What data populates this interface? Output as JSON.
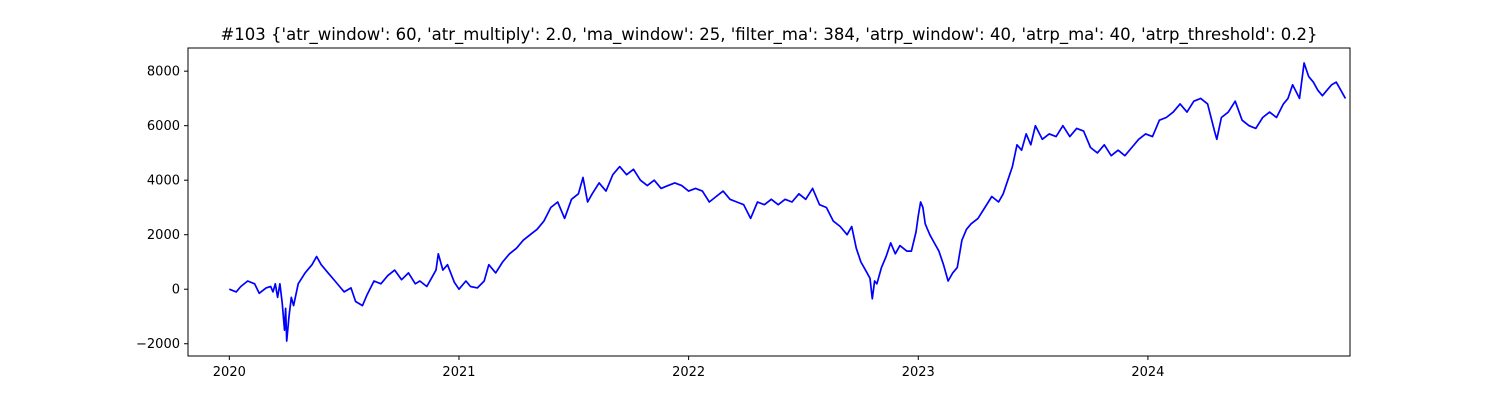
{
  "chart_data": {
    "type": "line",
    "title": "#103 {'atr_window': 60, 'atr_multiply': 2.0, 'ma_window': 25, 'filter_ma': 384, 'atrp_window': 40, 'atrp_ma': 40, 'atrp_threshold': 0.2}",
    "xlabel": "",
    "ylabel": "",
    "xlim": [
      2019.82,
      2024.88
    ],
    "ylim": [
      -2450,
      8850
    ],
    "x_ticks": [
      {
        "value": 2020,
        "label": "2020"
      },
      {
        "value": 2021,
        "label": "2021"
      },
      {
        "value": 2022,
        "label": "2022"
      },
      {
        "value": 2023,
        "label": "2023"
      },
      {
        "value": 2024,
        "label": "2024"
      }
    ],
    "y_ticks": [
      {
        "value": -2000,
        "label": "−2000"
      },
      {
        "value": 0,
        "label": "0"
      },
      {
        "value": 2000,
        "label": "2000"
      },
      {
        "value": 4000,
        "label": "4000"
      },
      {
        "value": 6000,
        "label": "6000"
      },
      {
        "value": 8000,
        "label": "8000"
      }
    ],
    "grid": false,
    "legend": "none",
    "series": [
      {
        "color": "#0000ff",
        "points": [
          [
            2020.0,
            0
          ],
          [
            2020.03,
            -100
          ],
          [
            2020.05,
            100
          ],
          [
            2020.08,
            300
          ],
          [
            2020.11,
            200
          ],
          [
            2020.13,
            -150
          ],
          [
            2020.16,
            50
          ],
          [
            2020.18,
            100
          ],
          [
            2020.19,
            -100
          ],
          [
            2020.2,
            200
          ],
          [
            2020.21,
            -300
          ],
          [
            2020.22,
            200
          ],
          [
            2020.23,
            -500
          ],
          [
            2020.24,
            -1500
          ],
          [
            2020.245,
            -700
          ],
          [
            2020.25,
            -1900
          ],
          [
            2020.26,
            -1000
          ],
          [
            2020.27,
            -300
          ],
          [
            2020.28,
            -600
          ],
          [
            2020.3,
            200
          ],
          [
            2020.33,
            600
          ],
          [
            2020.36,
            900
          ],
          [
            2020.38,
            1200
          ],
          [
            2020.4,
            900
          ],
          [
            2020.43,
            600
          ],
          [
            2020.46,
            300
          ],
          [
            2020.48,
            100
          ],
          [
            2020.5,
            -100
          ],
          [
            2020.53,
            50
          ],
          [
            2020.55,
            -450
          ],
          [
            2020.58,
            -600
          ],
          [
            2020.6,
            -200
          ],
          [
            2020.63,
            300
          ],
          [
            2020.66,
            200
          ],
          [
            2020.69,
            500
          ],
          [
            2020.72,
            700
          ],
          [
            2020.75,
            350
          ],
          [
            2020.78,
            600
          ],
          [
            2020.81,
            200
          ],
          [
            2020.83,
            300
          ],
          [
            2020.86,
            100
          ],
          [
            2020.88,
            400
          ],
          [
            2020.9,
            700
          ],
          [
            2020.91,
            1300
          ],
          [
            2020.93,
            700
          ],
          [
            2020.95,
            900
          ],
          [
            2020.98,
            250
          ],
          [
            2021.0,
            0
          ],
          [
            2021.03,
            300
          ],
          [
            2021.05,
            100
          ],
          [
            2021.08,
            50
          ],
          [
            2021.11,
            300
          ],
          [
            2021.13,
            900
          ],
          [
            2021.16,
            600
          ],
          [
            2021.19,
            1000
          ],
          [
            2021.22,
            1300
          ],
          [
            2021.25,
            1500
          ],
          [
            2021.28,
            1800
          ],
          [
            2021.31,
            2000
          ],
          [
            2021.34,
            2200
          ],
          [
            2021.37,
            2500
          ],
          [
            2021.4,
            3000
          ],
          [
            2021.43,
            3200
          ],
          [
            2021.46,
            2600
          ],
          [
            2021.49,
            3300
          ],
          [
            2021.52,
            3500
          ],
          [
            2021.54,
            4100
          ],
          [
            2021.56,
            3200
          ],
          [
            2021.58,
            3500
          ],
          [
            2021.61,
            3900
          ],
          [
            2021.64,
            3600
          ],
          [
            2021.67,
            4200
          ],
          [
            2021.7,
            4500
          ],
          [
            2021.73,
            4200
          ],
          [
            2021.76,
            4400
          ],
          [
            2021.79,
            4000
          ],
          [
            2021.82,
            3800
          ],
          [
            2021.85,
            4000
          ],
          [
            2021.88,
            3700
          ],
          [
            2021.91,
            3800
          ],
          [
            2021.94,
            3900
          ],
          [
            2021.97,
            3800
          ],
          [
            2022.0,
            3600
          ],
          [
            2022.03,
            3700
          ],
          [
            2022.06,
            3600
          ],
          [
            2022.09,
            3200
          ],
          [
            2022.12,
            3400
          ],
          [
            2022.15,
            3600
          ],
          [
            2022.18,
            3300
          ],
          [
            2022.21,
            3200
          ],
          [
            2022.24,
            3100
          ],
          [
            2022.27,
            2600
          ],
          [
            2022.3,
            3200
          ],
          [
            2022.33,
            3100
          ],
          [
            2022.36,
            3300
          ],
          [
            2022.39,
            3100
          ],
          [
            2022.42,
            3300
          ],
          [
            2022.45,
            3200
          ],
          [
            2022.48,
            3500
          ],
          [
            2022.51,
            3300
          ],
          [
            2022.54,
            3700
          ],
          [
            2022.57,
            3100
          ],
          [
            2022.6,
            3000
          ],
          [
            2022.63,
            2500
          ],
          [
            2022.66,
            2300
          ],
          [
            2022.69,
            2000
          ],
          [
            2022.71,
            2300
          ],
          [
            2022.73,
            1500
          ],
          [
            2022.75,
            1000
          ],
          [
            2022.77,
            700
          ],
          [
            2022.79,
            400
          ],
          [
            2022.8,
            -350
          ],
          [
            2022.81,
            300
          ],
          [
            2022.82,
            200
          ],
          [
            2022.84,
            800
          ],
          [
            2022.86,
            1200
          ],
          [
            2022.88,
            1700
          ],
          [
            2022.9,
            1300
          ],
          [
            2022.92,
            1600
          ],
          [
            2022.95,
            1400
          ],
          [
            2022.97,
            1400
          ],
          [
            2022.99,
            2100
          ],
          [
            2023.0,
            2700
          ],
          [
            2023.01,
            3200
          ],
          [
            2023.02,
            3000
          ],
          [
            2023.03,
            2400
          ],
          [
            2023.05,
            2000
          ],
          [
            2023.07,
            1700
          ],
          [
            2023.09,
            1400
          ],
          [
            2023.11,
            900
          ],
          [
            2023.13,
            300
          ],
          [
            2023.15,
            600
          ],
          [
            2023.17,
            800
          ],
          [
            2023.19,
            1800
          ],
          [
            2023.21,
            2200
          ],
          [
            2023.23,
            2400
          ],
          [
            2023.26,
            2600
          ],
          [
            2023.29,
            3000
          ],
          [
            2023.32,
            3400
          ],
          [
            2023.35,
            3200
          ],
          [
            2023.37,
            3500
          ],
          [
            2023.39,
            4000
          ],
          [
            2023.41,
            4500
          ],
          [
            2023.43,
            5300
          ],
          [
            2023.45,
            5100
          ],
          [
            2023.47,
            5700
          ],
          [
            2023.49,
            5300
          ],
          [
            2023.51,
            6000
          ],
          [
            2023.54,
            5500
          ],
          [
            2023.57,
            5700
          ],
          [
            2023.6,
            5600
          ],
          [
            2023.63,
            6000
          ],
          [
            2023.66,
            5600
          ],
          [
            2023.69,
            5900
          ],
          [
            2023.72,
            5800
          ],
          [
            2023.75,
            5200
          ],
          [
            2023.78,
            5000
          ],
          [
            2023.81,
            5300
          ],
          [
            2023.84,
            4900
          ],
          [
            2023.87,
            5100
          ],
          [
            2023.9,
            4900
          ],
          [
            2023.93,
            5200
          ],
          [
            2023.96,
            5500
          ],
          [
            2023.99,
            5700
          ],
          [
            2024.02,
            5600
          ],
          [
            2024.05,
            6200
          ],
          [
            2024.08,
            6300
          ],
          [
            2024.11,
            6500
          ],
          [
            2024.14,
            6800
          ],
          [
            2024.17,
            6500
          ],
          [
            2024.2,
            6900
          ],
          [
            2024.23,
            7000
          ],
          [
            2024.26,
            6800
          ],
          [
            2024.29,
            5800
          ],
          [
            2024.3,
            5500
          ],
          [
            2024.32,
            6300
          ],
          [
            2024.35,
            6500
          ],
          [
            2024.38,
            6900
          ],
          [
            2024.41,
            6200
          ],
          [
            2024.44,
            6000
          ],
          [
            2024.47,
            5900
          ],
          [
            2024.5,
            6300
          ],
          [
            2024.53,
            6500
          ],
          [
            2024.56,
            6300
          ],
          [
            2024.59,
            6800
          ],
          [
            2024.61,
            7000
          ],
          [
            2024.63,
            7500
          ],
          [
            2024.66,
            7000
          ],
          [
            2024.68,
            8300
          ],
          [
            2024.7,
            7800
          ],
          [
            2024.72,
            7600
          ],
          [
            2024.74,
            7300
          ],
          [
            2024.76,
            7100
          ],
          [
            2024.78,
            7300
          ],
          [
            2024.8,
            7500
          ],
          [
            2024.82,
            7600
          ],
          [
            2024.84,
            7300
          ],
          [
            2024.86,
            7000
          ]
        ]
      }
    ]
  }
}
